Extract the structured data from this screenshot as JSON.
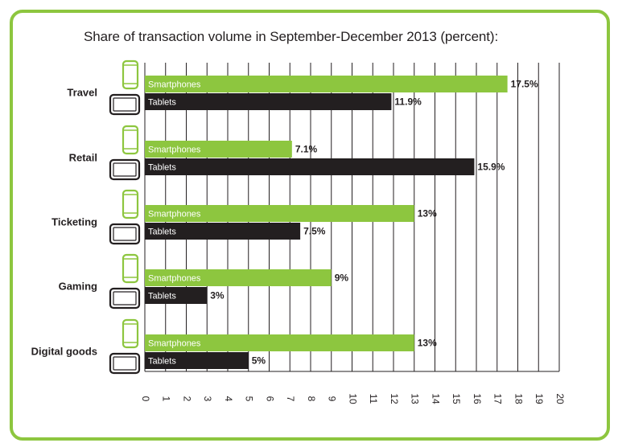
{
  "chart_data": {
    "type": "bar",
    "orientation": "horizontal",
    "title": "Share of transaction volume in September-December 2013 (percent):",
    "categories": [
      "Travel",
      "Retail",
      "Ticketing",
      "Gaming",
      "Digital goods"
    ],
    "series": [
      {
        "name": "Smartphones",
        "color": "#8dc63f",
        "icon": "smartphone-icon",
        "values": [
          17.5,
          7.1,
          13,
          9,
          13
        ],
        "value_labels": [
          "17.5%",
          "7.1%",
          "13%",
          "9%",
          "13%"
        ]
      },
      {
        "name": "Tablets",
        "color": "#231f20",
        "icon": "tablet-icon",
        "values": [
          11.9,
          15.9,
          7.5,
          3,
          5
        ],
        "value_labels": [
          "11.9%",
          "15.9%",
          "7.5%",
          "3%",
          "5%"
        ]
      }
    ],
    "xlim": [
      0,
      20
    ],
    "xticks": [
      "0",
      "1",
      "2",
      "3",
      "4",
      "5",
      "6",
      "7",
      "8",
      "9",
      "10",
      "11",
      "12",
      "13",
      "14",
      "15",
      "16",
      "17",
      "18",
      "19",
      "20"
    ],
    "grid": true,
    "frame_color": "#8dc63f"
  }
}
